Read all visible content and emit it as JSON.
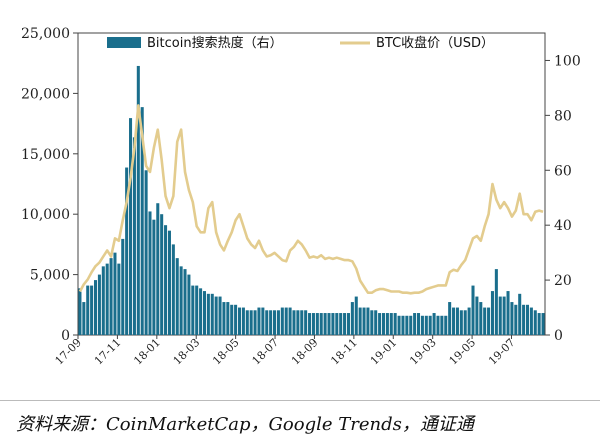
{
  "chart_data": {
    "type": "bar+line",
    "x_ticks": [
      "17-09",
      "17-11",
      "18-01",
      "18-03",
      "18-05",
      "18-07",
      "18-09",
      "18-11",
      "19-01",
      "19-03",
      "19-05",
      "19-07"
    ],
    "left_axis": {
      "ticks": [
        "0",
        "5,000",
        "10,000",
        "15,000",
        "20,000",
        "25,000"
      ],
      "ylim": [
        0,
        25000
      ]
    },
    "right_axis": {
      "ticks": [
        "0",
        "20",
        "40",
        "60",
        "80",
        "100"
      ],
      "ylim": [
        0,
        110
      ]
    },
    "legend_position": "top",
    "series": [
      {
        "name": "Bitcoin搜索热度（右）",
        "kind": "bar",
        "axis": "right",
        "color": "#1a6e8c",
        "values": [
          17,
          12,
          18,
          18,
          20,
          22,
          25,
          26,
          28,
          30,
          26,
          35,
          61,
          79,
          72,
          98,
          83,
          60,
          45,
          42,
          48,
          44,
          40,
          38,
          33,
          28,
          25,
          24,
          22,
          18,
          18,
          17,
          16,
          15,
          15,
          14,
          14,
          12,
          12,
          11,
          11,
          10,
          10,
          9,
          9,
          9,
          10,
          10,
          9,
          9,
          9,
          9,
          10,
          10,
          10,
          9,
          9,
          9,
          9,
          8,
          8,
          8,
          8,
          8,
          8,
          8,
          8,
          8,
          8,
          8,
          12,
          14,
          10,
          10,
          10,
          9,
          9,
          8,
          8,
          8,
          8,
          8,
          7,
          7,
          7,
          7,
          8,
          8,
          7,
          7,
          7,
          8,
          7,
          7,
          7,
          12,
          10,
          10,
          9,
          9,
          10,
          18,
          14,
          12,
          10,
          10,
          16,
          24,
          14,
          14,
          16,
          12,
          11,
          15,
          11,
          11,
          10,
          9,
          8,
          8
        ]
      },
      {
        "name": "BTC收盘价（USD）",
        "kind": "line",
        "axis": "left",
        "color": "#e3cc8e",
        "values": [
          3600,
          4200,
          4600,
          5200,
          5700,
          6000,
          6500,
          7000,
          6500,
          8000,
          7800,
          9500,
          11000,
          13000,
          15500,
          19000,
          16500,
          14000,
          13500,
          15500,
          17000,
          14500,
          11500,
          10500,
          11500,
          16000,
          17000,
          13500,
          12000,
          11000,
          9000,
          8500,
          8500,
          10500,
          11000,
          8500,
          7500,
          7000,
          7800,
          8500,
          9500,
          10000,
          9000,
          8000,
          7500,
          7200,
          7800,
          7000,
          6500,
          6600,
          6800,
          6500,
          6200,
          6100,
          7000,
          7300,
          7800,
          7500,
          7000,
          6400,
          6500,
          6400,
          6600,
          6300,
          6400,
          6300,
          6400,
          6300,
          6200,
          6200,
          6100,
          5500,
          4500,
          4000,
          3500,
          3500,
          3700,
          3800,
          3800,
          3700,
          3600,
          3600,
          3600,
          3500,
          3500,
          3450,
          3500,
          3500,
          3600,
          3800,
          3900,
          4000,
          4100,
          4100,
          4100,
          5200,
          5400,
          5300,
          5800,
          6200,
          7100,
          8000,
          8200,
          7800,
          9000,
          10000,
          12500,
          11200,
          10500,
          11000,
          10500,
          9800,
          10300,
          11700,
          10000,
          10000,
          9500,
          10200,
          10300,
          10200
        ]
      }
    ]
  },
  "source": "资料来源：CoinMarketCap，Google Trends，通证通"
}
